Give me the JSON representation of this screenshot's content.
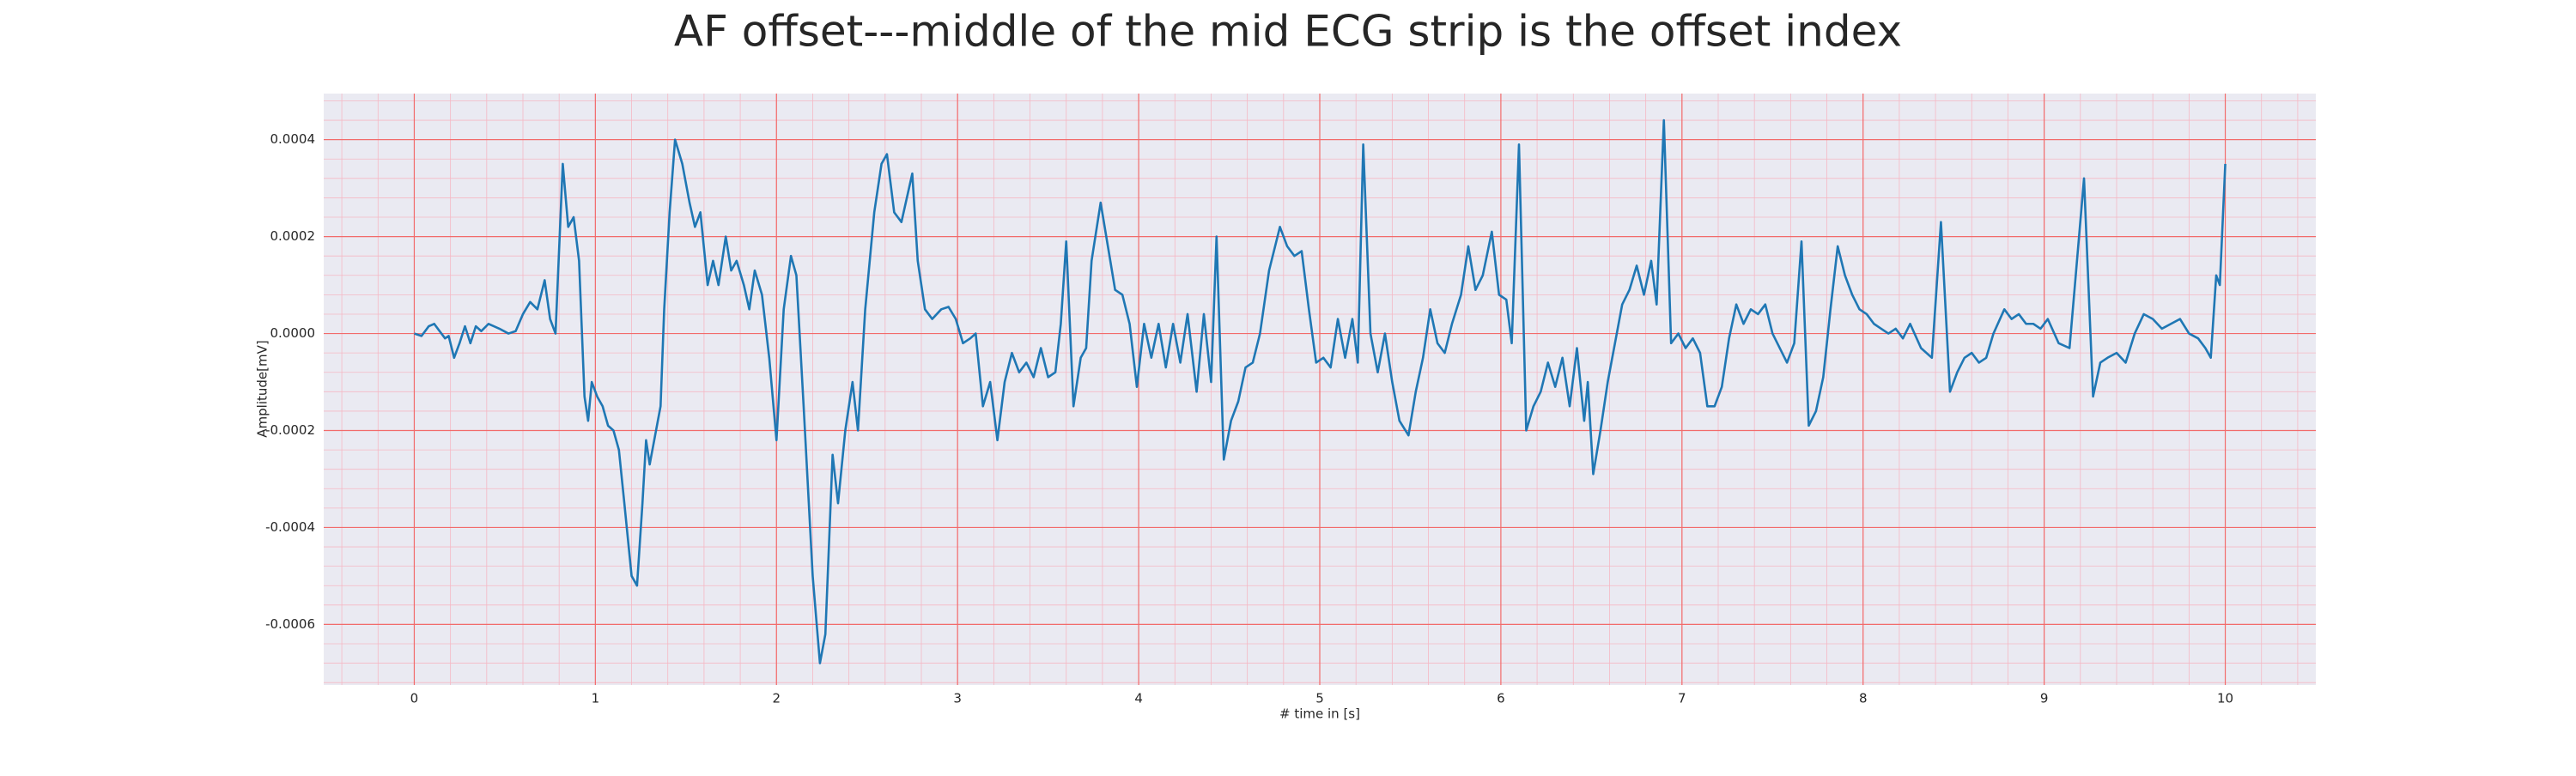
{
  "chart_data": {
    "type": "line",
    "title": "AF offset---middle of the mid ECG strip is the offset index",
    "x_label": "# time in [s]",
    "y_label": "Amplitude[mV]",
    "color": "#1f77b4",
    "background": "#eaeaf2",
    "grid": true,
    "grid_color": "#f26b6b",
    "minor_grid": true,
    "minor_grid_color": "#f5b8c4",
    "xlim": [
      -0.5,
      10.5
    ],
    "ylim": [
      -0.000725,
      0.000495
    ],
    "xticks": [
      0,
      1,
      2,
      3,
      4,
      5,
      6,
      7,
      8,
      9,
      10
    ],
    "yticks": [
      -0.0006,
      -0.0004,
      -0.0002,
      {
        "value": 0,
        "label": "0.0000"
      },
      0.0002,
      0.0004
    ],
    "x": [
      0,
      0.04,
      0.08,
      0.11,
      0.14,
      0.17,
      0.19,
      0.22,
      0.25,
      0.28,
      0.31,
      0.34,
      0.37,
      0.41,
      0.47,
      0.52,
      0.56,
      0.6,
      0.64,
      0.68,
      0.72,
      0.75,
      0.78,
      0.82,
      0.85,
      0.88,
      0.91,
      0.94,
      0.96,
      0.98,
      1.01,
      1.04,
      1.07,
      1.1,
      1.13,
      1.16,
      1.2,
      1.23,
      1.26,
      1.28,
      1.3,
      1.33,
      1.36,
      1.38,
      1.41,
      1.44,
      1.48,
      1.52,
      1.55,
      1.58,
      1.62,
      1.65,
      1.68,
      1.72,
      1.75,
      1.78,
      1.82,
      1.85,
      1.88,
      1.92,
      1.96,
      2,
      2.04,
      2.08,
      2.11,
      2.15,
      2.2,
      2.24,
      2.27,
      2.31,
      2.34,
      2.38,
      2.42,
      2.45,
      2.49,
      2.54,
      2.58,
      2.61,
      2.65,
      2.69,
      2.75,
      2.78,
      2.82,
      2.86,
      2.91,
      2.95,
      2.99,
      3.03,
      3.07,
      3.1,
      3.14,
      3.18,
      3.22,
      3.26,
      3.3,
      3.34,
      3.38,
      3.42,
      3.46,
      3.5,
      3.54,
      3.57,
      3.6,
      3.64,
      3.68,
      3.71,
      3.74,
      3.79,
      3.83,
      3.87,
      3.91,
      3.95,
      3.99,
      4.03,
      4.07,
      4.11,
      4.15,
      4.19,
      4.23,
      4.27,
      4.32,
      4.36,
      4.4,
      4.43,
      4.47,
      4.51,
      4.55,
      4.59,
      4.63,
      4.67,
      4.72,
      4.78,
      4.82,
      4.86,
      4.9,
      4.94,
      4.98,
      5.02,
      5.06,
      5.1,
      5.14,
      5.18,
      5.21,
      5.24,
      5.28,
      5.32,
      5.36,
      5.4,
      5.44,
      5.49,
      5.53,
      5.57,
      5.61,
      5.65,
      5.69,
      5.73,
      5.78,
      5.82,
      5.86,
      5.9,
      5.95,
      5.99,
      6.03,
      6.06,
      6.1,
      6.14,
      6.18,
      6.22,
      6.26,
      6.3,
      6.34,
      6.38,
      6.42,
      6.46,
      6.48,
      6.51,
      6.55,
      6.59,
      6.63,
      6.67,
      6.71,
      6.75,
      6.79,
      6.83,
      6.86,
      6.9,
      6.94,
      6.98,
      7.02,
      7.06,
      7.1,
      7.14,
      7.18,
      7.22,
      7.26,
      7.3,
      7.34,
      7.38,
      7.42,
      7.46,
      7.5,
      7.58,
      7.62,
      7.66,
      7.7,
      7.74,
      7.78,
      7.82,
      7.86,
      7.9,
      7.94,
      7.98,
      8.02,
      8.06,
      8.1,
      8.14,
      8.18,
      8.22,
      8.26,
      8.32,
      8.38,
      8.43,
      8.48,
      8.52,
      8.56,
      8.6,
      8.64,
      8.68,
      8.72,
      8.78,
      8.82,
      8.86,
      8.9,
      8.94,
      8.98,
      9.02,
      9.08,
      9.14,
      9.22,
      9.27,
      9.31,
      9.35,
      9.4,
      9.45,
      9.5,
      9.55,
      9.6,
      9.65,
      9.7,
      9.75,
      9.8,
      9.85,
      9.89,
      9.92,
      9.95,
      9.97,
      10
    ],
    "values": [
      0,
      -5e-06,
      1.5e-05,
      2e-05,
      5e-06,
      -1e-05,
      -5e-06,
      -5e-05,
      -2e-05,
      1.5e-05,
      -2e-05,
      1.5e-05,
      5e-06,
      2e-05,
      1e-05,
      0,
      5e-06,
      4e-05,
      6.5e-05,
      5e-05,
      0.00011,
      3e-05,
      0,
      0.00035,
      0.00022,
      0.00024,
      0.00015,
      -0.00013,
      -0.00018,
      -0.0001,
      -0.00013,
      -0.00015,
      -0.00019,
      -0.0002,
      -0.00024,
      -0.00035,
      -0.0005,
      -0.00052,
      -0.00035,
      -0.00022,
      -0.00027,
      -0.00021,
      -0.00015,
      5e-05,
      0.00025,
      0.0004,
      0.00035,
      0.00027,
      0.00022,
      0.00025,
      0.0001,
      0.00015,
      0.0001,
      0.0002,
      0.00013,
      0.00015,
      0.0001,
      5e-05,
      0.00013,
      8e-05,
      -5e-05,
      -0.00022,
      5e-05,
      0.00016,
      0.00012,
      -0.00015,
      -0.0005,
      -0.00068,
      -0.00062,
      -0.00025,
      -0.00035,
      -0.0002,
      -0.0001,
      -0.0002,
      5e-05,
      0.00025,
      0.00035,
      0.00037,
      0.00025,
      0.00023,
      0.00033,
      0.00015,
      5e-05,
      3e-05,
      5e-05,
      5.5e-05,
      3e-05,
      -2e-05,
      -1e-05,
      0,
      -0.00015,
      -0.0001,
      -0.00022,
      -0.0001,
      -4e-05,
      -8e-05,
      -6e-05,
      -9e-05,
      -3e-05,
      -9e-05,
      -8e-05,
      2e-05,
      0.00019,
      -0.00015,
      -5e-05,
      -3e-05,
      0.00015,
      0.00027,
      0.00018,
      9e-05,
      8e-05,
      2e-05,
      -0.00011,
      2e-05,
      -5e-05,
      2e-05,
      -7e-05,
      2e-05,
      -6e-05,
      4e-05,
      -0.00012,
      4e-05,
      -0.0001,
      0.0002,
      -0.00026,
      -0.00018,
      -0.00014,
      -7e-05,
      -6e-05,
      0,
      0.00013,
      0.00022,
      0.00018,
      0.00016,
      0.00017,
      5e-05,
      -6e-05,
      -5e-05,
      -7e-05,
      3e-05,
      -5e-05,
      3e-05,
      -6e-05,
      0.00039,
      0,
      -8e-05,
      0,
      -0.0001,
      -0.00018,
      -0.00021,
      -0.00012,
      -5e-05,
      5e-05,
      -2e-05,
      -4e-05,
      2e-05,
      8e-05,
      0.00018,
      9e-05,
      0.00012,
      0.00021,
      8e-05,
      7e-05,
      -2e-05,
      0.00039,
      -0.0002,
      -0.00015,
      -0.00012,
      -6e-05,
      -0.00011,
      -5e-05,
      -0.00015,
      -3e-05,
      -0.00018,
      -0.0001,
      -0.00029,
      -0.0002,
      -0.0001,
      -2e-05,
      6e-05,
      9e-05,
      0.00014,
      8e-05,
      0.00015,
      6e-05,
      0.00044,
      -2e-05,
      0,
      -3e-05,
      -1e-05,
      -4e-05,
      -0.00015,
      -0.00015,
      -0.00011,
      -1e-05,
      6e-05,
      2e-05,
      5e-05,
      4e-05,
      6e-05,
      0,
      -6e-05,
      -2e-05,
      0.00019,
      -0.00019,
      -0.00016,
      -9e-05,
      5e-05,
      0.00018,
      0.00012,
      8e-05,
      5e-05,
      4e-05,
      2e-05,
      1e-05,
      0,
      1e-05,
      -1e-05,
      2e-05,
      -3e-05,
      -5e-05,
      0.00023,
      -0.00012,
      -8e-05,
      -5e-05,
      -4e-05,
      -6e-05,
      -5e-05,
      0,
      5e-05,
      3e-05,
      4e-05,
      2e-05,
      2e-05,
      1e-05,
      3e-05,
      -2e-05,
      -3e-05,
      0.00032,
      -0.00013,
      -6e-05,
      -5e-05,
      -4e-05,
      -6e-05,
      0,
      4e-05,
      3e-05,
      1e-05,
      2e-05,
      3e-05,
      0,
      -1e-05,
      -3e-05,
      -5e-05,
      0.00012,
      0.0001,
      0.00035
    ]
  }
}
